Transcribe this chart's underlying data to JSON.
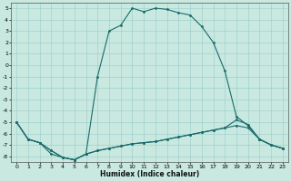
{
  "xlabel": "Humidex (Indice chaleur)",
  "bg_color": "#c8e8e0",
  "grid_color": "#99cccc",
  "line_color": "#1a6b6b",
  "ylim": [
    -8.5,
    5.5
  ],
  "xlim": [
    -0.5,
    23.5
  ],
  "yticks": [
    -8,
    -7,
    -6,
    -5,
    -4,
    -3,
    -2,
    -1,
    0,
    1,
    2,
    3,
    4,
    5
  ],
  "xticks": [
    0,
    1,
    2,
    3,
    4,
    5,
    6,
    7,
    8,
    9,
    10,
    11,
    12,
    13,
    14,
    15,
    16,
    17,
    18,
    19,
    20,
    21,
    22,
    23
  ],
  "series1_x": [
    0,
    1,
    2,
    3,
    4,
    5,
    6,
    7,
    8,
    9,
    10,
    11,
    12,
    13,
    14,
    15,
    16,
    17,
    18,
    19,
    20,
    21,
    22,
    23
  ],
  "series1_y": [
    -5.0,
    -6.5,
    -6.8,
    -7.8,
    -8.1,
    -8.3,
    -7.8,
    -1.0,
    3.0,
    3.5,
    5.0,
    4.7,
    5.0,
    4.9,
    4.6,
    4.4,
    3.4,
    2.0,
    -0.5,
    -4.5,
    -5.3,
    -6.5,
    -7.0,
    -7.3
  ],
  "series2_x": [
    0,
    1,
    2,
    3,
    4,
    5,
    6,
    7,
    8,
    9,
    10,
    11,
    12,
    13,
    14,
    15,
    16,
    17,
    18,
    19,
    20,
    21,
    22,
    23
  ],
  "series2_y": [
    -5.0,
    -6.5,
    -6.8,
    -7.5,
    -8.1,
    -8.3,
    -7.8,
    -7.5,
    -7.3,
    -7.1,
    -6.9,
    -6.8,
    -6.7,
    -6.5,
    -6.3,
    -6.1,
    -5.9,
    -5.7,
    -5.5,
    -5.3,
    -5.5,
    -6.5,
    -7.0,
    -7.3
  ],
  "series3_x": [
    0,
    1,
    2,
    3,
    4,
    5,
    6,
    7,
    8,
    9,
    10,
    11,
    12,
    13,
    14,
    15,
    16,
    17,
    18,
    19,
    20,
    21,
    22,
    23
  ],
  "series3_y": [
    -5.0,
    -6.5,
    -6.8,
    -7.5,
    -8.1,
    -8.3,
    -7.8,
    -7.5,
    -7.3,
    -7.1,
    -6.9,
    -6.8,
    -6.7,
    -6.5,
    -6.3,
    -6.1,
    -5.9,
    -5.7,
    -5.5,
    -4.8,
    -5.2,
    -6.5,
    -7.0,
    -7.3
  ]
}
